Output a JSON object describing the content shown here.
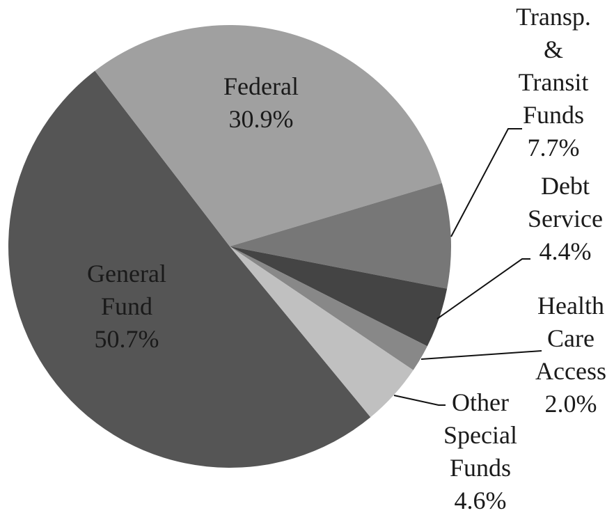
{
  "chart_data": {
    "type": "pie",
    "categories": [
      "General\nFund",
      "Federal",
      "Transp.\n& Transit\nFunds",
      "Debt\nService",
      "Health\nCare\nAccess",
      "Other\nSpecial\nFunds"
    ],
    "values": [
      50.7,
      30.9,
      7.7,
      4.4,
      2.0,
      4.6
    ],
    "value_labels": [
      "50.7%",
      "30.9%",
      "7.7%",
      "4.4%",
      "2.0%",
      "4.6%"
    ],
    "colors": [
      "#555555",
      "#a0a0a0",
      "#777777",
      "#444444",
      "#888888",
      "#c0c0c0"
    ]
  }
}
